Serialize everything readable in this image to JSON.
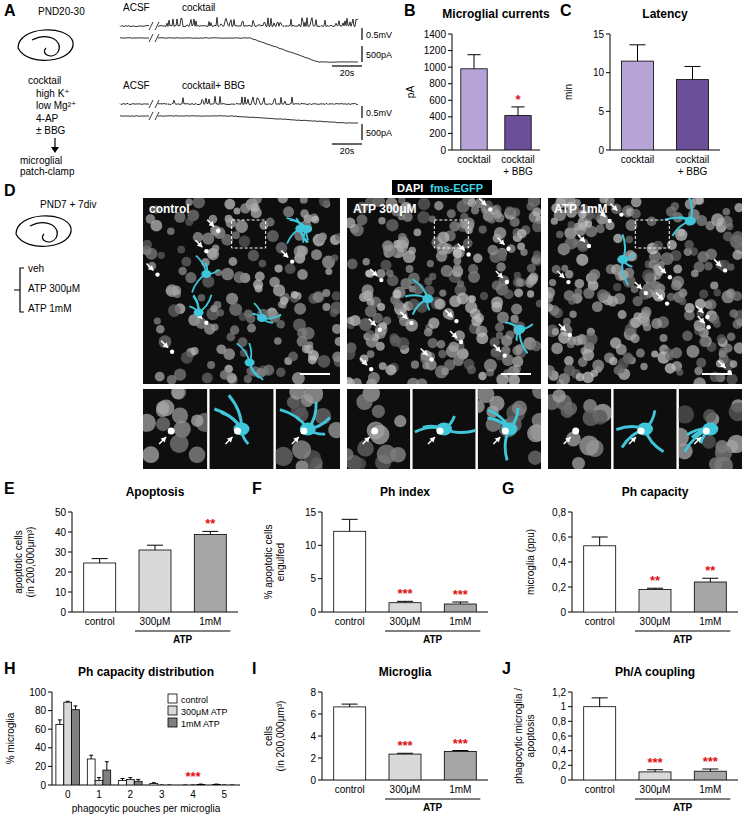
{
  "panel_a": {
    "letter": "A",
    "age": "PND20-30",
    "protocol": [
      "cocktail",
      "high K⁺",
      "low Mg²⁺",
      "4-AP",
      "± BBG"
    ],
    "readout": [
      "microglial",
      "patch-clamp"
    ],
    "traces": [
      {
        "labels": [
          "ACSF",
          "cocktail"
        ],
        "scale_bars": [
          "0.5mV",
          "500pA",
          "20s"
        ]
      },
      {
        "labels": [
          "ACSF",
          "cocktail+ BBG"
        ],
        "scale_bars": [
          "0.5mV",
          "500pA",
          "20s"
        ]
      }
    ]
  },
  "panel_d": {
    "letter": "D",
    "age": "PND7 + 7div",
    "treatments": [
      "veh",
      "ATP 300μM",
      "ATP 1mM"
    ],
    "stains": [
      "DAPI",
      "fms-EGFP"
    ],
    "images": [
      "control",
      "ATP 300μM",
      "ATP 1mM"
    ]
  },
  "chart_data": [
    {
      "panel": "B",
      "type": "bar",
      "title": "Microglial currents",
      "ylabel": [
        "pA"
      ],
      "categories": [
        "cocktail",
        "cocktail + BBG"
      ],
      "values": [
        980,
        415
      ],
      "errors": [
        170,
        105
      ],
      "significance": [
        null,
        "*"
      ],
      "colors": [
        "#b7a4d6",
        "#6b4f98"
      ],
      "ylim": [
        0,
        1400
      ],
      "yticks": [
        0,
        200,
        400,
        600,
        800,
        1000,
        1200,
        1400
      ]
    },
    {
      "panel": "C",
      "type": "bar",
      "title": "Latency",
      "ylabel": [
        "min"
      ],
      "categories": [
        "cocktail",
        "cocktail + BBG"
      ],
      "values": [
        11.5,
        9.1
      ],
      "errors": [
        2.1,
        1.7
      ],
      "colors": [
        "#b7a4d6",
        "#6b4f98"
      ],
      "ylim": [
        0,
        15
      ],
      "yticks": [
        0,
        5,
        10,
        15
      ]
    },
    {
      "panel": "E",
      "type": "bar",
      "title": "Apoptosis",
      "ylabel": [
        "apoptotic cells",
        "(in 200,000μm³)"
      ],
      "categories": [
        "control",
        "300μM",
        "1mM"
      ],
      "group_label": "ATP",
      "values": [
        24.5,
        31,
        38.8
      ],
      "errors": [
        2.2,
        2.4,
        1.5
      ],
      "significance": [
        null,
        null,
        "**"
      ],
      "colors": [
        "#ffffff",
        "#d9d9d9",
        "#a6a6a6"
      ],
      "ylim": [
        0,
        50
      ],
      "yticks": [
        0,
        10,
        20,
        30,
        40,
        50
      ]
    },
    {
      "panel": "F",
      "type": "bar",
      "title": "Ph index",
      "ylabel": [
        "% apoptotic cells",
        "engulfed"
      ],
      "categories": [
        "control",
        "300μM",
        "1mM"
      ],
      "group_label": "ATP",
      "values": [
        12.1,
        1.4,
        1.2
      ],
      "errors": [
        1.8,
        0.2,
        0.3
      ],
      "significance": [
        null,
        "***",
        "***"
      ],
      "colors": [
        "#ffffff",
        "#d9d9d9",
        "#a6a6a6"
      ],
      "ylim": [
        0,
        15
      ],
      "yticks": [
        0,
        5,
        10,
        15
      ]
    },
    {
      "panel": "G",
      "type": "bar",
      "title": "Ph capacity",
      "ylabel": [
        "microglia (ppu)"
      ],
      "categories": [
        "control",
        "300μM",
        "1mM"
      ],
      "group_label": "ATP",
      "values": [
        0.53,
        0.18,
        0.24
      ],
      "errors": [
        0.07,
        0.01,
        0.03
      ],
      "significance": [
        null,
        "**",
        "**"
      ],
      "colors": [
        "#ffffff",
        "#d9d9d9",
        "#a6a6a6"
      ],
      "ylim": [
        0,
        0.8
      ],
      "yticks": [
        0,
        {
          "value": 0.2,
          "label": "0,2"
        },
        {
          "value": 0.4,
          "label": "0,4"
        },
        {
          "value": 0.6,
          "label": "0,6"
        },
        {
          "value": 0.8,
          "label": "0,8"
        }
      ]
    },
    {
      "panel": "H",
      "type": "bar",
      "title": "Ph capacity distribution",
      "ylabel": [
        "% microglia"
      ],
      "xlabel": "phagocytic pouches per microglia",
      "categories": [
        "0",
        "1",
        "2",
        "3",
        "4",
        "5"
      ],
      "series": [
        {
          "name": "control",
          "color": "#ffffff",
          "values": [
            65,
            28,
            5,
            1.5,
            0,
            0.5
          ],
          "errors": [
            5,
            4,
            2,
            1,
            0,
            0.5
          ]
        },
        {
          "name": "300μM ATP",
          "color": "#d9d9d9",
          "values": [
            89,
            5,
            6,
            0,
            0,
            0
          ],
          "errors": [
            1,
            3,
            2,
            0,
            0,
            0
          ]
        },
        {
          "name": "1mM ATP",
          "color": "#7f7f7f",
          "values": [
            81,
            16,
            4,
            0,
            0.5,
            0
          ],
          "errors": [
            4,
            9,
            2,
            0,
            0.5,
            0
          ]
        }
      ],
      "significance": [
        null,
        null,
        null,
        null,
        "***",
        null
      ],
      "legend": "top-right",
      "ylim": [
        0,
        100
      ],
      "yticks": [
        0,
        20,
        40,
        60,
        80,
        100
      ]
    },
    {
      "panel": "I",
      "type": "bar",
      "title": "Microglia",
      "ylabel": [
        "cells",
        "(in 200,000μm³)"
      ],
      "categories": [
        "control",
        "300μM",
        "1mM"
      ],
      "group_label": "ATP",
      "values": [
        6.65,
        2.35,
        2.6
      ],
      "errors": [
        0.25,
        0.08,
        0.08
      ],
      "significance": [
        null,
        "***",
        "***"
      ],
      "colors": [
        "#ffffff",
        "#d9d9d9",
        "#a6a6a6"
      ],
      "ylim": [
        0,
        8
      ],
      "yticks": [
        0,
        2,
        4,
        6,
        8
      ]
    },
    {
      "panel": "J",
      "type": "bar",
      "title": "Ph/A coupling",
      "ylabel": [
        "phagocytic microglia /",
        "apoptosis"
      ],
      "categories": [
        "control",
        "300μM",
        "1mM"
      ],
      "group_label": "ATP",
      "values": [
        1.0,
        0.11,
        0.12
      ],
      "errors": [
        0.12,
        0.03,
        0.03
      ],
      "significance": [
        null,
        "***",
        "***"
      ],
      "colors": [
        "#ffffff",
        "#d9d9d9",
        "#a6a6a6"
      ],
      "ylim": [
        0,
        1.2
      ],
      "yticks": [
        0,
        {
          "value": 0.2,
          "label": "0,2"
        },
        {
          "value": 0.4,
          "label": "0,4"
        },
        {
          "value": 0.6,
          "label": "0,6"
        },
        {
          "value": 0.8,
          "label": "0,8"
        },
        1,
        {
          "value": 1.2,
          "label": "1,2"
        }
      ]
    }
  ]
}
